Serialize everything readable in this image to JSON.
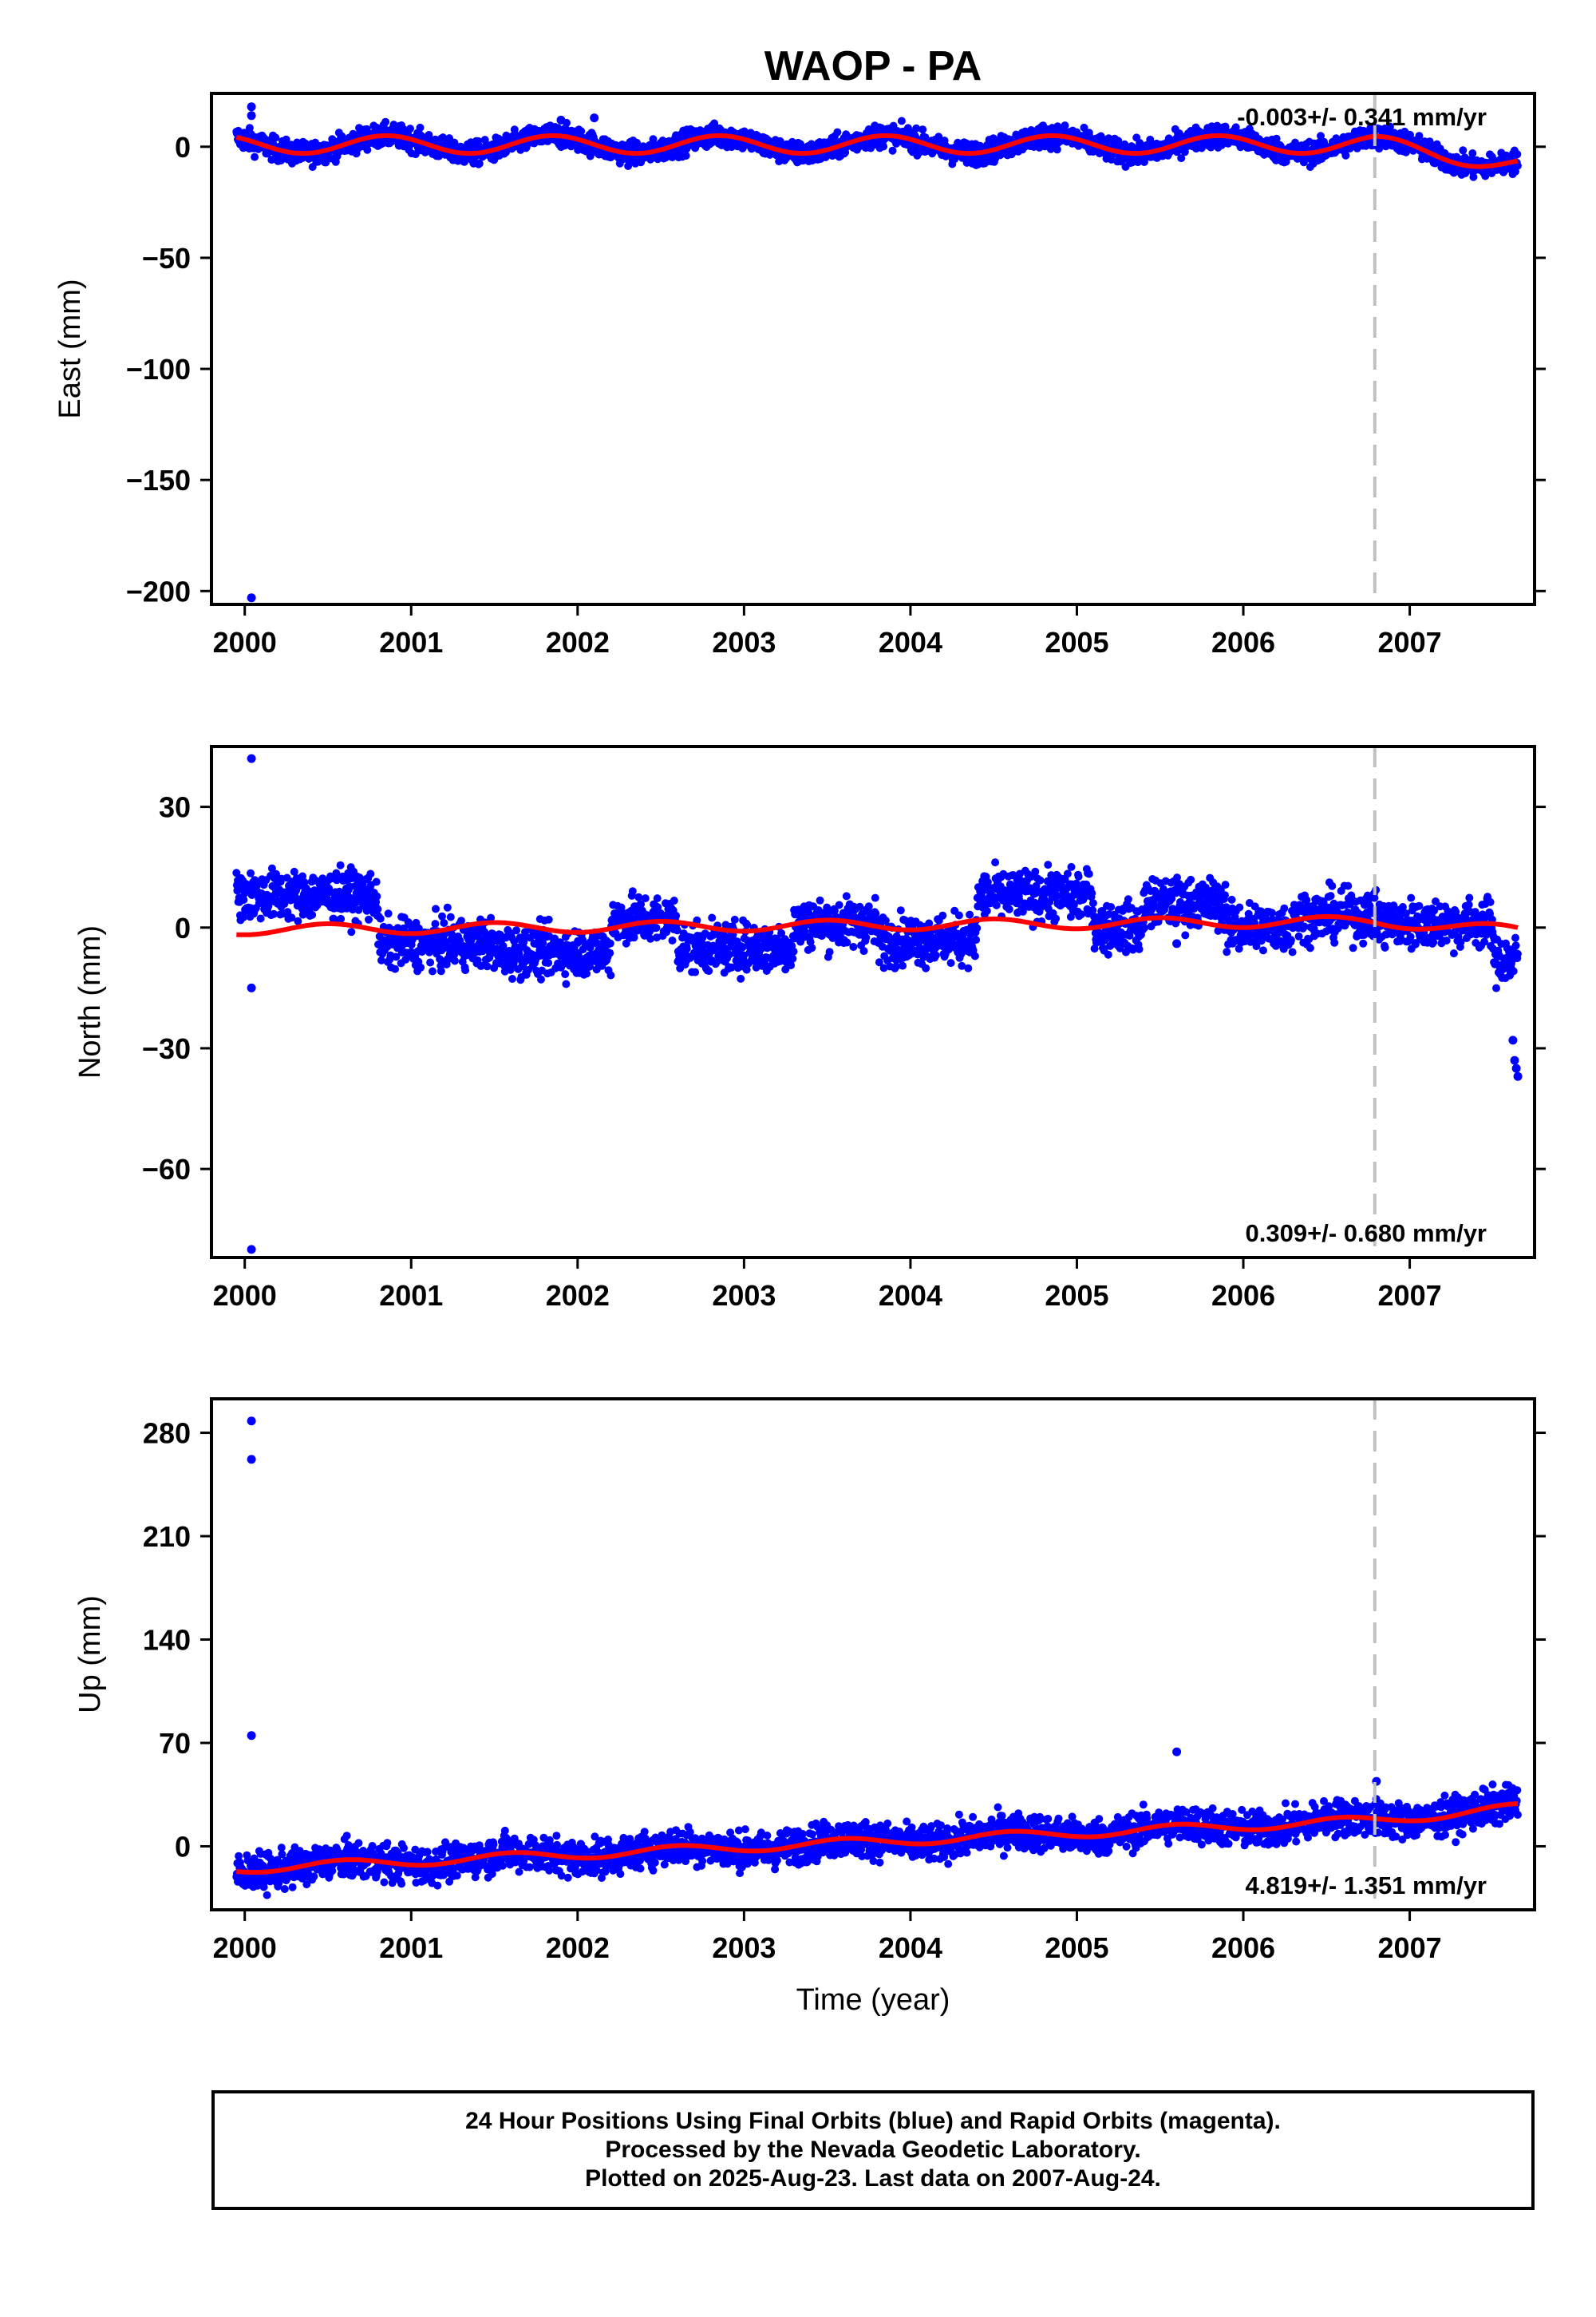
{
  "title": "WAOP - PA",
  "xlabel": "Time (year)",
  "colors": {
    "data": "#0000ff",
    "model": "#ff0000",
    "offset_line": "#c0c0c0",
    "frame": "#000000"
  },
  "chart_data": [
    {
      "type": "scatter",
      "component": "East",
      "ylabel": "East (mm)",
      "xlim": [
        1999.8,
        2007.75
      ],
      "ylim": [
        -206,
        24
      ],
      "yticks": [
        0,
        -50,
        -100,
        -150,
        -200
      ],
      "xticks": [
        2000,
        2001,
        2002,
        2003,
        2004,
        2005,
        2006,
        2007
      ],
      "rate_label": "-0.003+/- 0.341 mm/yr",
      "rate_position": "top-right",
      "offset_epoch": 2006.79,
      "outliers": [
        [
          2000.04,
          18
        ],
        [
          2000.04,
          14
        ],
        [
          2000.04,
          -203
        ],
        [
          2001.9,
          12
        ],
        [
          2002.1,
          13
        ]
      ],
      "model_curve": {
        "offset": 1.0,
        "trend": 0.0,
        "amplitude": 4.0,
        "phase_peak": 0.85,
        "step_after_offset": -8,
        "post_offset_trend": -10
      },
      "scatter": {
        "noise": 2.5,
        "spread": 4
      }
    },
    {
      "type": "scatter",
      "component": "North",
      "ylabel": "North (mm)",
      "xlim": [
        1999.8,
        2007.75
      ],
      "ylim": [
        -82,
        45
      ],
      "yticks": [
        30,
        0,
        -30,
        -60
      ],
      "xticks": [
        2000,
        2001,
        2002,
        2003,
        2004,
        2005,
        2006,
        2007
      ],
      "rate_label": "0.309+/- 0.680 mm/yr",
      "rate_position": "bottom-right",
      "offset_epoch": 2006.79,
      "outliers": [
        [
          2000.04,
          42
        ],
        [
          2000.04,
          -15
        ],
        [
          2000.04,
          -80
        ],
        [
          2007.62,
          -28
        ],
        [
          2007.63,
          -33
        ],
        [
          2007.64,
          -35
        ],
        [
          2007.65,
          -37
        ],
        [
          2005.6,
          -4
        ]
      ],
      "model_curve": {
        "offset": -0.5,
        "trend": 0.3,
        "amplitude": 1.3,
        "phase_peak": 0.5,
        "step_after_offset": -1,
        "post_offset_trend": -3
      },
      "scatter_segments": [
        {
          "from": 1999.95,
          "to": 2000.8,
          "level": 8
        },
        {
          "from": 2000.8,
          "to": 2001.5,
          "level": -4
        },
        {
          "from": 2001.5,
          "to": 2002.2,
          "level": -6
        },
        {
          "from": 2002.2,
          "to": 2002.6,
          "level": 2
        },
        {
          "from": 2002.6,
          "to": 2003.3,
          "level": -5
        },
        {
          "from": 2003.3,
          "to": 2003.8,
          "level": 1
        },
        {
          "from": 2003.8,
          "to": 2004.4,
          "level": -3
        },
        {
          "from": 2004.4,
          "to": 2005.1,
          "level": 8
        },
        {
          "from": 2005.1,
          "to": 2005.4,
          "level": 0
        },
        {
          "from": 2005.4,
          "to": 2005.9,
          "level": 6
        },
        {
          "from": 2005.9,
          "to": 2006.3,
          "level": 0
        },
        {
          "from": 2006.3,
          "to": 2006.8,
          "level": 3
        },
        {
          "from": 2006.8,
          "to": 2007.5,
          "level": 1
        },
        {
          "from": 2007.5,
          "to": 2007.65,
          "level": -8
        }
      ],
      "scatter": {
        "noise": 3.0,
        "spread": 5
      }
    },
    {
      "type": "scatter",
      "component": "Up",
      "ylabel": "Up (mm)",
      "xlim": [
        1999.8,
        2007.75
      ],
      "ylim": [
        -43,
        303
      ],
      "yticks": [
        280,
        210,
        140,
        70,
        0
      ],
      "xticks": [
        2000,
        2001,
        2002,
        2003,
        2004,
        2005,
        2006,
        2007
      ],
      "rate_label": "4.819+/- 1.351 mm/yr",
      "rate_position": "bottom-right",
      "offset_epoch": 2006.79,
      "outliers": [
        [
          2000.04,
          288
        ],
        [
          2000.04,
          262
        ],
        [
          2000.04,
          75
        ],
        [
          2005.6,
          64
        ],
        [
          2006.8,
          44
        ]
      ],
      "model_curve": {
        "offset": -15,
        "trend": 4.8,
        "amplitude": 3.0,
        "phase_peak": 0.6,
        "step_after_offset": -2,
        "post_offset_trend": 5
      },
      "scatter": {
        "noise": 6.0,
        "spread": 10
      }
    }
  ],
  "footer": {
    "line1": "24 Hour Positions Using Final Orbits (blue) and Rapid Orbits (magenta).",
    "line2": "Processed by the Nevada Geodetic Laboratory.",
    "line3": "Plotted on 2025-Aug-23. Last data on 2007-Aug-24."
  }
}
